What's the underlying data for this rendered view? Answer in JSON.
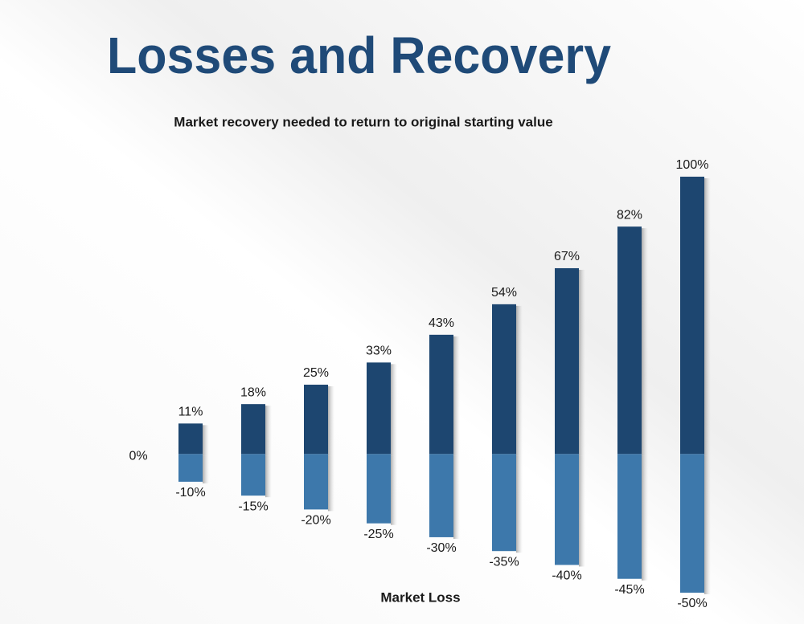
{
  "chart_data": {
    "type": "diverging-bar",
    "title": "Losses and Recovery",
    "subtitle": "Market recovery needed to return to original starting value",
    "x_label": "Market Loss",
    "ylim": [
      -50,
      100
    ],
    "yticks": [
      {
        "value": 0,
        "label": "0%"
      }
    ],
    "series": [
      {
        "color": "#1d4670",
        "values": [
          11,
          18,
          25,
          33,
          43,
          54,
          67,
          82,
          100
        ],
        "value_labels": [
          "11%",
          "18%",
          "25%",
          "33%",
          "43%",
          "54%",
          "67%",
          "82%",
          "100%"
        ]
      },
      {
        "color": "#3d78ab",
        "values": [
          -10,
          -15,
          -20,
          -25,
          -30,
          -35,
          -40,
          -45,
          -50
        ],
        "value_labels": [
          "-10%",
          "-15%",
          "-20%",
          "-25%",
          "-30%",
          "-35%",
          "-40%",
          "-45%",
          "-50%"
        ]
      }
    ]
  }
}
